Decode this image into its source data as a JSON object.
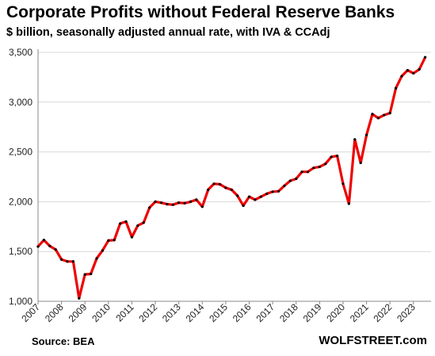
{
  "chart_data": {
    "type": "line",
    "title": "Corporate Profits without Federal Reserve Banks",
    "subtitle": "$ billion, seasonally adjusted annual rate, with IVA & CCAdj",
    "source": "Source: BEA",
    "brand": "WOLFSTREET.com",
    "ylim": [
      1000,
      3500
    ],
    "y_ticks": [
      1000,
      1500,
      2000,
      2500,
      3000,
      3500
    ],
    "y_tick_labels": [
      "1,000",
      "1,500",
      "2,000",
      "2,500",
      "3,000",
      "3,500"
    ],
    "xlim": [
      2007.0,
      2023.75
    ],
    "x_ticks": [
      2007,
      2008,
      2009,
      2010,
      2011,
      2012,
      2013,
      2014,
      2015,
      2016,
      2017,
      2018,
      2019,
      2020,
      2021,
      2022,
      2023
    ],
    "x_tick_labels": [
      "2007",
      "2008",
      "2009",
      "2010",
      "2011",
      "2012",
      "2013",
      "2014",
      "2015",
      "2016",
      "2017",
      "2018",
      "2019",
      "2020",
      "2021",
      "2022",
      "2023"
    ],
    "grid": true,
    "line_color": "#ee0000",
    "marker_color": "#000000",
    "series": [
      {
        "values": [
          [
            2007.0,
            1550
          ],
          [
            2007.25,
            1615
          ],
          [
            2007.5,
            1555
          ],
          [
            2007.75,
            1520
          ],
          [
            2008.0,
            1420
          ],
          [
            2008.25,
            1400
          ],
          [
            2008.5,
            1400
          ],
          [
            2008.75,
            1030
          ],
          [
            2009.0,
            1270
          ],
          [
            2009.25,
            1275
          ],
          [
            2009.5,
            1430
          ],
          [
            2009.75,
            1510
          ],
          [
            2010.0,
            1610
          ],
          [
            2010.25,
            1615
          ],
          [
            2010.5,
            1780
          ],
          [
            2010.75,
            1800
          ],
          [
            2011.0,
            1645
          ],
          [
            2011.25,
            1760
          ],
          [
            2011.5,
            1790
          ],
          [
            2011.75,
            1940
          ],
          [
            2012.0,
            2000
          ],
          [
            2012.25,
            1990
          ],
          [
            2012.5,
            1975
          ],
          [
            2012.75,
            1970
          ],
          [
            2013.0,
            1990
          ],
          [
            2013.25,
            1985
          ],
          [
            2013.5,
            2000
          ],
          [
            2013.75,
            2020
          ],
          [
            2014.0,
            1950
          ],
          [
            2014.25,
            2120
          ],
          [
            2014.5,
            2180
          ],
          [
            2014.75,
            2175
          ],
          [
            2015.0,
            2140
          ],
          [
            2015.25,
            2120
          ],
          [
            2015.5,
            2060
          ],
          [
            2015.75,
            1960
          ],
          [
            2016.0,
            2050
          ],
          [
            2016.25,
            2020
          ],
          [
            2016.5,
            2050
          ],
          [
            2016.75,
            2080
          ],
          [
            2017.0,
            2100
          ],
          [
            2017.25,
            2105
          ],
          [
            2017.5,
            2160
          ],
          [
            2017.75,
            2210
          ],
          [
            2018.0,
            2230
          ],
          [
            2018.25,
            2300
          ],
          [
            2018.5,
            2300
          ],
          [
            2018.75,
            2340
          ],
          [
            2019.0,
            2350
          ],
          [
            2019.25,
            2380
          ],
          [
            2019.5,
            2450
          ],
          [
            2019.75,
            2460
          ],
          [
            2020.0,
            2180
          ],
          [
            2020.25,
            1980
          ],
          [
            2020.5,
            2625
          ],
          [
            2020.75,
            2390
          ],
          [
            2021.0,
            2670
          ],
          [
            2021.25,
            2880
          ],
          [
            2021.5,
            2840
          ],
          [
            2021.75,
            2870
          ],
          [
            2022.0,
            2890
          ],
          [
            2022.25,
            3140
          ],
          [
            2022.5,
            3260
          ],
          [
            2022.75,
            3320
          ],
          [
            2023.0,
            3290
          ],
          [
            2023.25,
            3330
          ],
          [
            2023.5,
            3450
          ]
        ]
      }
    ]
  }
}
